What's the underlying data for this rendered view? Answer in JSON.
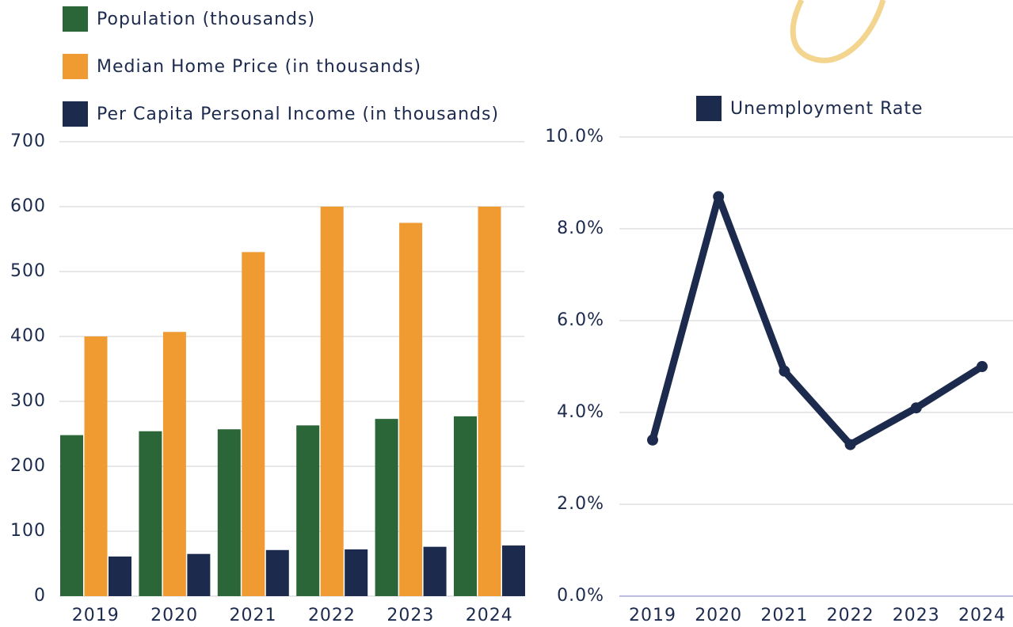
{
  "chart_data": [
    {
      "type": "bar",
      "categories": [
        "2019",
        "2020",
        "2021",
        "2022",
        "2023",
        "2024"
      ],
      "series": [
        {
          "name": "Population (thousands)",
          "color": "#2a6637",
          "values": [
            248,
            254,
            257,
            263,
            273,
            277
          ]
        },
        {
          "name": "Median Home Price (in thousands)",
          "color": "#ef9b32",
          "values": [
            400,
            407,
            530,
            600,
            575,
            600
          ]
        },
        {
          "name": "Per Capita Personal Income (in thousands)",
          "color": "#1c2a4d",
          "values": [
            61,
            65,
            71,
            72,
            76,
            78
          ]
        }
      ],
      "ylim": [
        0,
        700
      ],
      "yticks": [
        0,
        100,
        200,
        300,
        400,
        500,
        600,
        700
      ],
      "grid": true
    },
    {
      "type": "line",
      "categories": [
        "2019",
        "2020",
        "2021",
        "2022",
        "2023",
        "2024"
      ],
      "series": [
        {
          "name": "Unemployment Rate",
          "color": "#1c2a4d",
          "values": [
            3.4,
            8.7,
            4.9,
            3.3,
            4.1,
            5.0
          ]
        }
      ],
      "ylim": [
        0,
        10
      ],
      "yticks": [
        {
          "value": 0,
          "label": "0.0%"
        },
        {
          "value": 2,
          "label": "2.0%"
        },
        {
          "value": 4,
          "label": "4.0%"
        },
        {
          "value": 6,
          "label": "6.0%"
        },
        {
          "value": 8,
          "label": "8.0%"
        },
        {
          "value": 10,
          "label": "10.0%"
        }
      ],
      "grid": true
    }
  ]
}
